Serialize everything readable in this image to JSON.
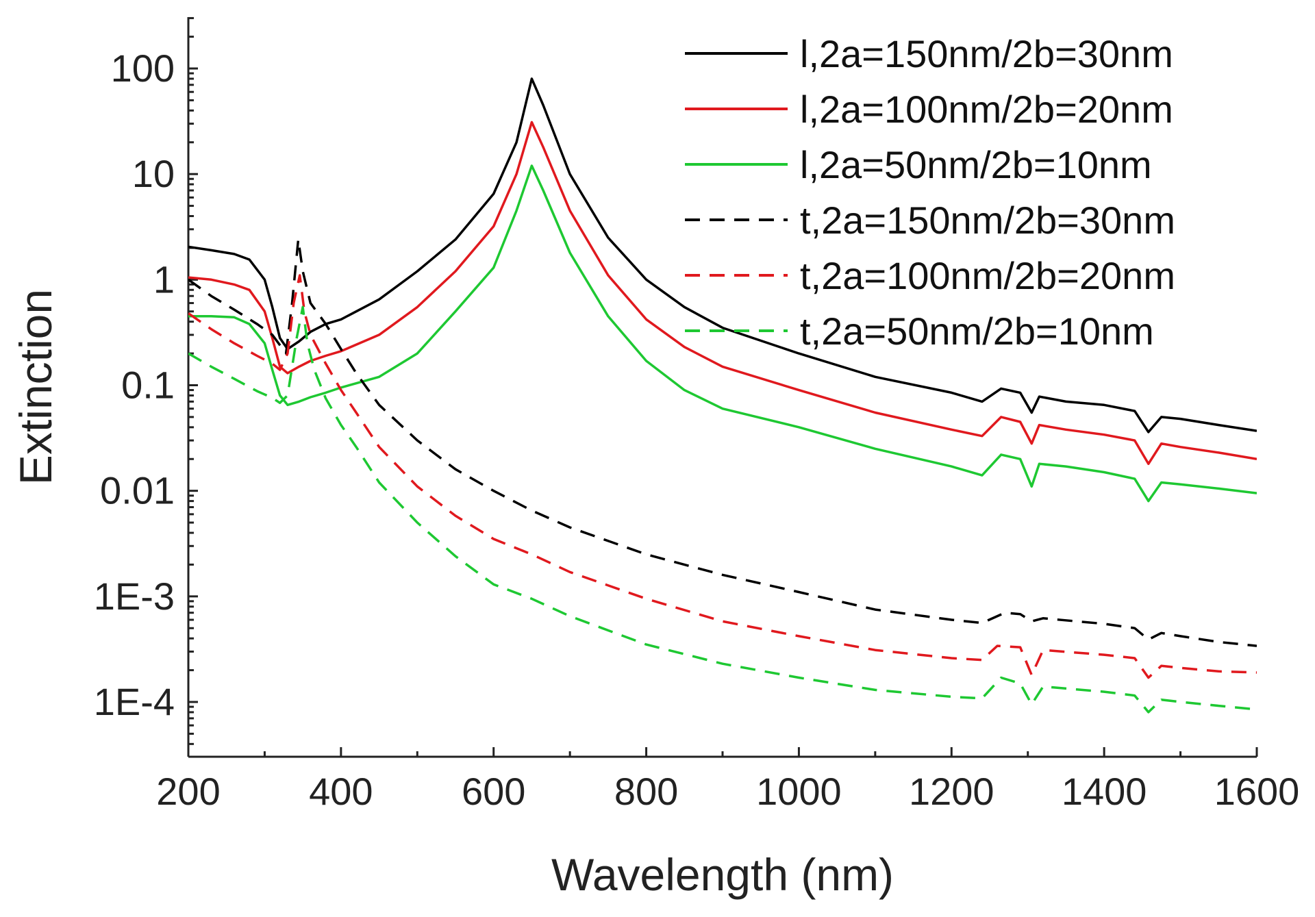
{
  "chart_data": {
    "type": "line",
    "title": "",
    "xlabel": "Wavelength (nm)",
    "ylabel": "Extinction",
    "xlim": [
      200,
      1600
    ],
    "ylim": [
      5e-05,
      400
    ],
    "yscale": "log",
    "x_ticks": [
      200,
      400,
      600,
      800,
      1000,
      1200,
      1400,
      1600
    ],
    "x_tick_labels": [
      "200",
      "400",
      "600",
      "800",
      "1000",
      "1200",
      "1400",
      "1600"
    ],
    "y_ticks": [
      0.0001,
      0.001,
      0.01,
      0.1,
      1,
      10,
      100
    ],
    "y_tick_labels": [
      "1E-4",
      "1E-3",
      "0.01",
      "0.1",
      "1",
      "10",
      "100"
    ],
    "grid": false,
    "legend_position": "top-right",
    "series": [
      {
        "name": "l,2a=150nm/2b=30nm",
        "color": "#000000",
        "dash": "solid",
        "points": [
          [
            200,
            2.05
          ],
          [
            230,
            1.9
          ],
          [
            260,
            1.75
          ],
          [
            280,
            1.55
          ],
          [
            300,
            1.0
          ],
          [
            310,
            0.55
          ],
          [
            320,
            0.28
          ],
          [
            330,
            0.22
          ],
          [
            345,
            0.26
          ],
          [
            360,
            0.32
          ],
          [
            380,
            0.38
          ],
          [
            400,
            0.42
          ],
          [
            450,
            0.65
          ],
          [
            500,
            1.2
          ],
          [
            550,
            2.4
          ],
          [
            600,
            6.5
          ],
          [
            630,
            20
          ],
          [
            650,
            80
          ],
          [
            665,
            45
          ],
          [
            700,
            10
          ],
          [
            750,
            2.5
          ],
          [
            800,
            1.0
          ],
          [
            850,
            0.55
          ],
          [
            900,
            0.35
          ],
          [
            1000,
            0.2
          ],
          [
            1100,
            0.12
          ],
          [
            1200,
            0.085
          ],
          [
            1240,
            0.07
          ],
          [
            1265,
            0.093
          ],
          [
            1290,
            0.085
          ],
          [
            1305,
            0.055
          ],
          [
            1315,
            0.078
          ],
          [
            1350,
            0.07
          ],
          [
            1400,
            0.065
          ],
          [
            1440,
            0.057
          ],
          [
            1458,
            0.036
          ],
          [
            1475,
            0.05
          ],
          [
            1500,
            0.048
          ],
          [
            1550,
            0.042
          ],
          [
            1600,
            0.037
          ]
        ]
      },
      {
        "name": "l,2a=100nm/2b=20nm",
        "color": "#e0191e",
        "dash": "solid",
        "points": [
          [
            200,
            1.05
          ],
          [
            230,
            1.0
          ],
          [
            260,
            0.9
          ],
          [
            280,
            0.8
          ],
          [
            300,
            0.5
          ],
          [
            310,
            0.28
          ],
          [
            320,
            0.15
          ],
          [
            330,
            0.13
          ],
          [
            345,
            0.15
          ],
          [
            360,
            0.17
          ],
          [
            380,
            0.19
          ],
          [
            400,
            0.21
          ],
          [
            450,
            0.3
          ],
          [
            500,
            0.55
          ],
          [
            550,
            1.2
          ],
          [
            600,
            3.2
          ],
          [
            630,
            10
          ],
          [
            650,
            31
          ],
          [
            665,
            18
          ],
          [
            700,
            4.5
          ],
          [
            750,
            1.1
          ],
          [
            800,
            0.42
          ],
          [
            850,
            0.23
          ],
          [
            900,
            0.15
          ],
          [
            1000,
            0.09
          ],
          [
            1100,
            0.055
          ],
          [
            1200,
            0.038
          ],
          [
            1240,
            0.033
          ],
          [
            1265,
            0.05
          ],
          [
            1290,
            0.045
          ],
          [
            1305,
            0.028
          ],
          [
            1315,
            0.042
          ],
          [
            1350,
            0.038
          ],
          [
            1400,
            0.034
          ],
          [
            1440,
            0.03
          ],
          [
            1458,
            0.018
          ],
          [
            1475,
            0.028
          ],
          [
            1500,
            0.026
          ],
          [
            1550,
            0.023
          ],
          [
            1600,
            0.02
          ]
        ]
      },
      {
        "name": "l,2a=50nm/2b=10nm",
        "color": "#1ec832",
        "dash": "solid",
        "points": [
          [
            200,
            0.45
          ],
          [
            230,
            0.45
          ],
          [
            260,
            0.44
          ],
          [
            280,
            0.38
          ],
          [
            300,
            0.25
          ],
          [
            310,
            0.14
          ],
          [
            320,
            0.08
          ],
          [
            330,
            0.065
          ],
          [
            345,
            0.07
          ],
          [
            360,
            0.077
          ],
          [
            380,
            0.085
          ],
          [
            400,
            0.095
          ],
          [
            450,
            0.12
          ],
          [
            500,
            0.2
          ],
          [
            550,
            0.5
          ],
          [
            600,
            1.3
          ],
          [
            630,
            4.5
          ],
          [
            650,
            12
          ],
          [
            665,
            7
          ],
          [
            700,
            1.8
          ],
          [
            750,
            0.45
          ],
          [
            800,
            0.17
          ],
          [
            850,
            0.09
          ],
          [
            900,
            0.06
          ],
          [
            1000,
            0.04
          ],
          [
            1100,
            0.025
          ],
          [
            1200,
            0.017
          ],
          [
            1240,
            0.014
          ],
          [
            1265,
            0.022
          ],
          [
            1290,
            0.02
          ],
          [
            1305,
            0.011
          ],
          [
            1315,
            0.018
          ],
          [
            1350,
            0.017
          ],
          [
            1400,
            0.015
          ],
          [
            1440,
            0.013
          ],
          [
            1458,
            0.008
          ],
          [
            1475,
            0.012
          ],
          [
            1500,
            0.0115
          ],
          [
            1550,
            0.0105
          ],
          [
            1600,
            0.0095
          ]
        ]
      },
      {
        "name": "t,2a=150nm/2b=30nm",
        "color": "#000000",
        "dash": "dashed",
        "points": [
          [
            200,
            1.0
          ],
          [
            230,
            0.7
          ],
          [
            260,
            0.52
          ],
          [
            290,
            0.38
          ],
          [
            310,
            0.3
          ],
          [
            320,
            0.24
          ],
          [
            328,
            0.2
          ],
          [
            336,
            0.6
          ],
          [
            344,
            2.4
          ],
          [
            350,
            1.2
          ],
          [
            360,
            0.6
          ],
          [
            380,
            0.38
          ],
          [
            400,
            0.22
          ],
          [
            420,
            0.13
          ],
          [
            450,
            0.065
          ],
          [
            500,
            0.03
          ],
          [
            550,
            0.016
          ],
          [
            600,
            0.01
          ],
          [
            650,
            0.0065
          ],
          [
            700,
            0.0045
          ],
          [
            800,
            0.0025
          ],
          [
            900,
            0.0016
          ],
          [
            1000,
            0.0011
          ],
          [
            1100,
            0.00075
          ],
          [
            1200,
            0.0006
          ],
          [
            1240,
            0.00056
          ],
          [
            1270,
            0.0007
          ],
          [
            1290,
            0.00068
          ],
          [
            1305,
            0.00058
          ],
          [
            1320,
            0.00062
          ],
          [
            1400,
            0.00055
          ],
          [
            1440,
            0.0005
          ],
          [
            1458,
            0.00039
          ],
          [
            1475,
            0.00045
          ],
          [
            1500,
            0.00042
          ],
          [
            1550,
            0.00037
          ],
          [
            1600,
            0.00034
          ]
        ]
      },
      {
        "name": "t,2a=100nm/2b=20nm",
        "color": "#e0191e",
        "dash": "dashed",
        "points": [
          [
            200,
            0.48
          ],
          [
            230,
            0.34
          ],
          [
            260,
            0.25
          ],
          [
            290,
            0.19
          ],
          [
            310,
            0.16
          ],
          [
            320,
            0.14
          ],
          [
            330,
            0.2
          ],
          [
            338,
            0.6
          ],
          [
            346,
            1.1
          ],
          [
            352,
            0.5
          ],
          [
            360,
            0.3
          ],
          [
            380,
            0.16
          ],
          [
            400,
            0.09
          ],
          [
            420,
            0.055
          ],
          [
            450,
            0.026
          ],
          [
            500,
            0.011
          ],
          [
            550,
            0.0058
          ],
          [
            600,
            0.0035
          ],
          [
            650,
            0.0025
          ],
          [
            700,
            0.0017
          ],
          [
            800,
            0.00095
          ],
          [
            900,
            0.00058
          ],
          [
            1000,
            0.00042
          ],
          [
            1100,
            0.00031
          ],
          [
            1200,
            0.00026
          ],
          [
            1240,
            0.00025
          ],
          [
            1260,
            0.00034
          ],
          [
            1290,
            0.00033
          ],
          [
            1305,
            0.00018
          ],
          [
            1320,
            0.00031
          ],
          [
            1400,
            0.00028
          ],
          [
            1440,
            0.00026
          ],
          [
            1458,
            0.00017
          ],
          [
            1475,
            0.00022
          ],
          [
            1500,
            0.00021
          ],
          [
            1550,
            0.000195
          ],
          [
            1600,
            0.00019
          ]
        ]
      },
      {
        "name": "t,2a=50nm/2b=10nm",
        "color": "#1ec832",
        "dash": "dashed",
        "points": [
          [
            200,
            0.2
          ],
          [
            230,
            0.15
          ],
          [
            260,
            0.115
          ],
          [
            290,
            0.088
          ],
          [
            310,
            0.076
          ],
          [
            320,
            0.068
          ],
          [
            330,
            0.08
          ],
          [
            342,
            0.28
          ],
          [
            350,
            0.55
          ],
          [
            356,
            0.25
          ],
          [
            365,
            0.14
          ],
          [
            380,
            0.075
          ],
          [
            400,
            0.042
          ],
          [
            420,
            0.026
          ],
          [
            450,
            0.012
          ],
          [
            500,
            0.005
          ],
          [
            550,
            0.0024
          ],
          [
            600,
            0.0013
          ],
          [
            650,
            0.00095
          ],
          [
            700,
            0.00065
          ],
          [
            800,
            0.00035
          ],
          [
            900,
            0.00023
          ],
          [
            1000,
            0.00017
          ],
          [
            1100,
            0.00013
          ],
          [
            1200,
            0.000112
          ],
          [
            1240,
            0.000108
          ],
          [
            1265,
            0.00017
          ],
          [
            1290,
            0.00015
          ],
          [
            1305,
            9.5e-05
          ],
          [
            1320,
            0.00014
          ],
          [
            1400,
            0.000125
          ],
          [
            1440,
            0.000115
          ],
          [
            1458,
            8e-05
          ],
          [
            1475,
            0.000105
          ],
          [
            1500,
            0.0001
          ],
          [
            1550,
            9.2e-05
          ],
          [
            1600,
            8.5e-05
          ]
        ]
      }
    ]
  }
}
